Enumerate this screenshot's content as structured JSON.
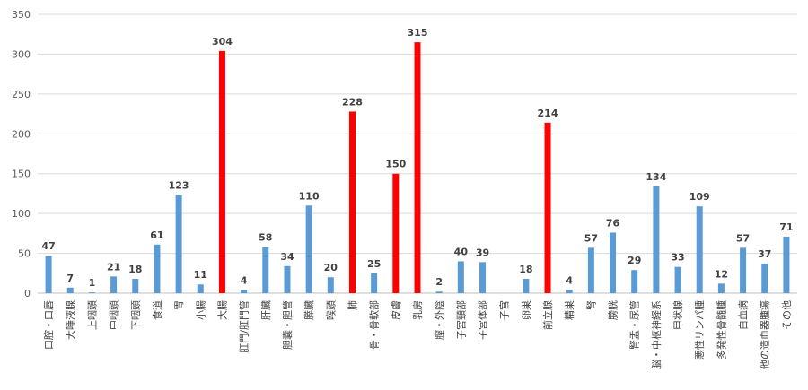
{
  "chart_data": {
    "type": "bar",
    "title": "",
    "xlabel": "",
    "ylabel": "",
    "ylim": [
      0,
      350
    ],
    "yticks": [
      0,
      50,
      100,
      150,
      200,
      250,
      300,
      350
    ],
    "grid": true,
    "legend": "none",
    "colors": {
      "default": "#5b9bd5",
      "highlight": "#ff0000"
    },
    "categories": [
      "口腔・口唇",
      "大唾液腺",
      "上咽頭",
      "中咽頭",
      "下咽頭",
      "食道",
      "胃",
      "小腸",
      "大腸",
      "肛門/肛門管",
      "肝臓",
      "胆嚢・胆管",
      "膵臓",
      "喉頭",
      "肺",
      "骨・骨軟部",
      "皮膚",
      "乳房",
      "膣・外陰",
      "子宮頸部",
      "子宮体部",
      "子宮",
      "卵巣",
      "前立腺",
      "精巣",
      "腎",
      "膀胱",
      "腎盂・尿管",
      "脳・中枢神経系",
      "甲状腺",
      "悪性リンパ腫",
      "多発性骨髄腫",
      "白血病",
      "他の造血器腫瘍",
      "その他"
    ],
    "values": [
      47,
      7,
      1,
      21,
      18,
      61,
      123,
      11,
      304,
      4,
      58,
      34,
      110,
      20,
      228,
      25,
      150,
      315,
      2,
      40,
      39,
      0,
      18,
      214,
      4,
      57,
      76,
      29,
      134,
      33,
      109,
      12,
      57,
      37,
      71
    ],
    "highlighted": [
      false,
      false,
      false,
      false,
      false,
      false,
      false,
      false,
      true,
      false,
      false,
      false,
      false,
      false,
      true,
      false,
      true,
      true,
      false,
      false,
      false,
      false,
      false,
      true,
      false,
      false,
      false,
      false,
      false,
      false,
      false,
      false,
      false,
      false,
      false
    ],
    "show_label": [
      true,
      true,
      true,
      true,
      true,
      true,
      true,
      true,
      true,
      true,
      true,
      true,
      true,
      true,
      true,
      true,
      true,
      true,
      true,
      true,
      true,
      false,
      true,
      true,
      true,
      true,
      true,
      true,
      true,
      true,
      true,
      true,
      true,
      true,
      true
    ]
  }
}
